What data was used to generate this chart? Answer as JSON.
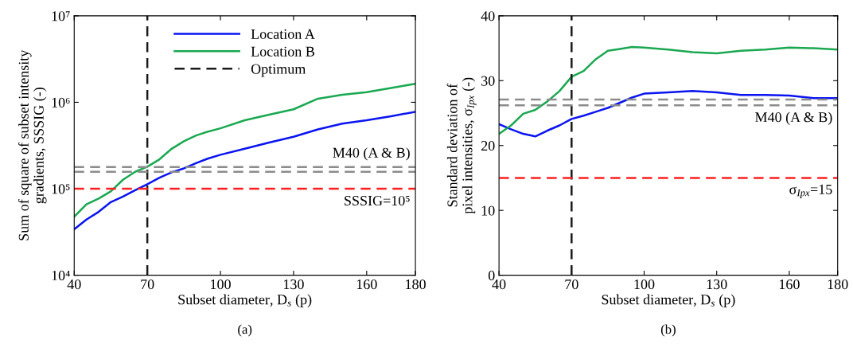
{
  "chart_data": [
    {
      "type": "line",
      "ylabel": "Sum of square of subset intensity\ngradients, SSSIG (-)",
      "xlabel": "Subset diameter, D$_{s}$ (p)",
      "log": "y",
      "x": [
        40,
        45,
        50,
        55,
        60,
        65,
        70,
        75,
        80,
        85,
        90,
        95,
        100,
        110,
        120,
        130,
        140,
        150,
        160,
        170,
        180
      ],
      "series": [
        {
          "name": "Location A",
          "color": "#0a14f0",
          "values": [
            34000,
            44000,
            54000,
            70000,
            81000,
            96000,
            113000,
            134000,
            155000,
            172000,
            198000,
            224000,
            247000,
            290000,
            342000,
            399000,
            486000,
            566000,
            620000,
            690000,
            776000
          ]
        },
        {
          "name": "Location B",
          "color": "#1aa851",
          "values": [
            47500,
            66000,
            77000,
            93000,
            127000,
            157000,
            180000,
            219000,
            290000,
            354000,
            413000,
            459000,
            500000,
            620000,
            720000,
            830000,
            1100000,
            1220000,
            1310000,
            1460000,
            1640000
          ]
        },
        {
          "name": "Optimum",
          "color": "#1a1a1a",
          "line_style": "dashed",
          "x": [
            70,
            70
          ],
          "values": [
            10000,
            10000000
          ]
        }
      ],
      "xlim": [
        40,
        180
      ],
      "xticks": [
        40,
        70,
        100,
        130,
        160,
        180
      ],
      "ylim": [
        10000,
        10000000
      ],
      "yticks": [
        {
          "value": 10000,
          "label": "10⁴"
        },
        {
          "value": 100000,
          "label": "10⁵"
        },
        {
          "value": 1000000,
          "label": "10⁶"
        },
        {
          "value": 10000000,
          "label": "10⁷"
        }
      ],
      "ref_lines": [
        {
          "axis": "y",
          "value": 178000,
          "label": "M40 (A & B)",
          "color": "#8c8c8c",
          "line_style": "dashed"
        },
        {
          "axis": "y",
          "value": 157000,
          "color": "#8c8c8c",
          "line_style": "dashed"
        },
        {
          "axis": "y",
          "value": 100000,
          "color": "#ff2020",
          "line_style": "dashed"
        }
      ],
      "annotations": [
        "SSSIG=10⁵",
        "(a)"
      ],
      "legend": "top",
      "grid": false
    },
    {
      "type": "line",
      "ylabel": "Standard deviation of\npixel intensities, σ$_{Ipx}$ (-)",
      "xlabel": "Subset diameter, D$_{s}$ (p)",
      "x": [
        40,
        45,
        50,
        55,
        60,
        65,
        70,
        75,
        80,
        85,
        90,
        95,
        100,
        110,
        120,
        130,
        140,
        150,
        160,
        170,
        180
      ],
      "series": [
        {
          "color": "#0a14f0",
          "values": [
            23.3,
            22.5,
            21.8,
            21.4,
            22.3,
            23.1,
            24.1,
            24.6,
            25.2,
            25.8,
            26.6,
            27.4,
            28.0,
            28.2,
            28.4,
            28.2,
            27.8,
            27.8,
            27.7,
            27.3,
            27.3
          ]
        },
        {
          "color": "#1aa851",
          "values": [
            21.8,
            23.1,
            24.9,
            25.5,
            26.8,
            28.4,
            30.6,
            31.5,
            33.3,
            34.6,
            34.9,
            35.2,
            35.1,
            34.8,
            34.4,
            34.2,
            34.6,
            34.8,
            35.1,
            35.0,
            34.8
          ]
        }
      ],
      "xlim": [
        40,
        180
      ],
      "xticks": [
        40,
        70,
        100,
        130,
        160,
        180
      ],
      "ylim": [
        0,
        40
      ],
      "yticks": [
        0,
        10,
        20,
        30,
        40
      ],
      "ref_lines": [
        {
          "axis": "x",
          "value": 70,
          "color": "#1a1a1a",
          "line_style": "dashed"
        },
        {
          "axis": "y",
          "value": 27.1,
          "color": "#8c8c8c",
          "line_style": "dashed"
        },
        {
          "axis": "y",
          "value": 26.2,
          "label": "M40 (A & B)",
          "color": "#8c8c8c",
          "line_style": "dashed"
        },
        {
          "axis": "y",
          "value": 15,
          "label": "σ$_{Ipx}$=15",
          "color": "#ff2020",
          "line_style": "dashed"
        }
      ],
      "annotations": [
        "(b)"
      ],
      "legend": false,
      "grid": false
    }
  ]
}
